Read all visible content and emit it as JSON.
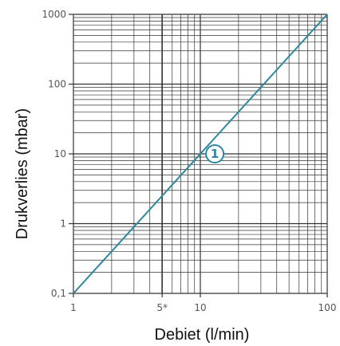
{
  "chart_data": {
    "type": "line",
    "title": "",
    "xlabel": "Debiet (l/min)",
    "ylabel": "Drukverlies (mbar)",
    "xscale": "log",
    "yscale": "log",
    "xlim": [
      1,
      100
    ],
    "ylim": [
      0.1,
      1000
    ],
    "grid": true,
    "x_ticks": [
      {
        "value": 1,
        "label": "1"
      },
      {
        "value": 5,
        "label": "5*"
      },
      {
        "value": 10,
        "label": "10"
      },
      {
        "value": 100,
        "label": "100"
      }
    ],
    "y_ticks": [
      {
        "value": 0.1,
        "label": "0,1"
      },
      {
        "value": 1,
        "label": "1"
      },
      {
        "value": 10,
        "label": "10"
      },
      {
        "value": 100,
        "label": "100"
      },
      {
        "value": 1000,
        "label": "1000"
      }
    ],
    "highlight_x": 5,
    "series": [
      {
        "color": "#2e86a0",
        "marker_label": "1",
        "marker_at": {
          "x": 13,
          "y": 10
        },
        "points": [
          {
            "x": 1,
            "y": 0.1
          },
          {
            "x": 100,
            "y": 1000
          }
        ]
      }
    ]
  },
  "colors": {
    "grid": "#333333",
    "line": "#2e86a0"
  }
}
